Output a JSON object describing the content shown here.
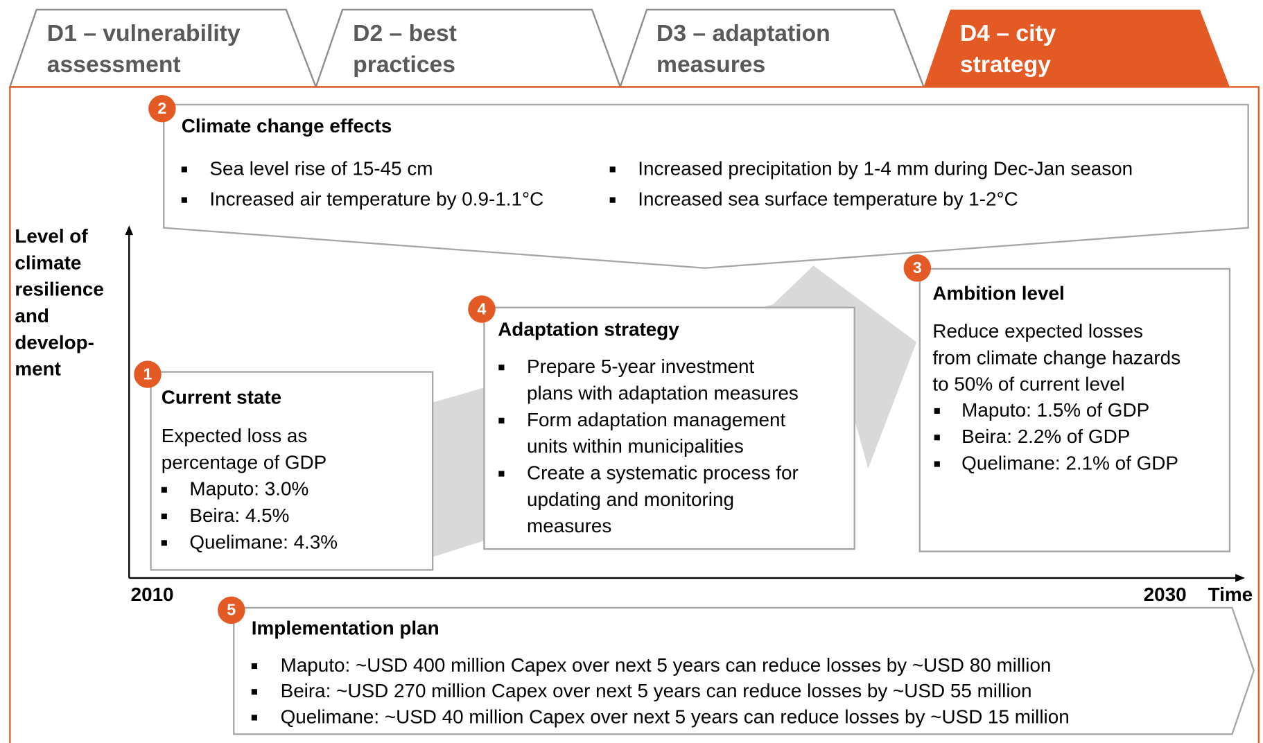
{
  "tabs": [
    {
      "lines": [
        "D1 – vulnerability",
        "assessment"
      ]
    },
    {
      "lines": [
        "D2 – best",
        "practices"
      ]
    },
    {
      "lines": [
        "D3 – adaptation",
        "measures"
      ]
    },
    {
      "lines": [
        "D4 – city",
        "strategy"
      ]
    }
  ],
  "y_axis_label": [
    "Level of",
    "climate",
    "resilience",
    "and",
    "develop-",
    "ment"
  ],
  "x_axis": {
    "start": "2010",
    "end": "2030",
    "label": "Time"
  },
  "boxes": [
    {
      "number": "2",
      "title": "Climate change effects",
      "intro": [],
      "bullets": [
        [
          "Sea level rise of 15-45 cm"
        ],
        [
          "Increased air temperature by 0.9-1.1°C"
        ],
        [
          "Increased precipitation by 1-4 mm during Dec-Jan season"
        ],
        [
          "Increased sea surface temperature by 1-2°C"
        ]
      ]
    },
    {
      "number": "1",
      "title": "Current state",
      "intro": [
        "Expected loss as",
        "percentage of GDP"
      ],
      "bullets": [
        [
          "Maputo: 3.0%"
        ],
        [
          "Beira: 4.5%"
        ],
        [
          "Quelimane: 4.3%"
        ]
      ]
    },
    {
      "number": "4",
      "title": "Adaptation strategy",
      "intro": [],
      "bullets": [
        [
          "Prepare 5-year investment",
          "plans with adaptation measures"
        ],
        [
          "Form adaptation management",
          "units within municipalities"
        ],
        [
          "Create a systematic process for",
          "updating and monitoring",
          "measures"
        ]
      ]
    },
    {
      "number": "3",
      "title": "Ambition level",
      "intro": [
        "Reduce expected losses",
        "from climate change hazards",
        "to 50% of current level"
      ],
      "bullets": [
        [
          "Maputo: 1.5% of GDP"
        ],
        [
          "Beira: 2.2% of GDP"
        ],
        [
          "Quelimane: 2.1% of GDP"
        ]
      ]
    },
    {
      "number": "5",
      "title": "Implementation plan",
      "intro": [],
      "bullets": [
        [
          "Maputo: ~USD 400 million Capex over next 5 years can reduce losses by ~USD 80 million"
        ],
        [
          "Beira: ~USD 270 million Capex over next 5 years can reduce losses by ~USD 55 million"
        ],
        [
          "Quelimane: ~USD 40 million Capex over next 5 years can reduce losses by ~USD 15 million"
        ]
      ]
    }
  ]
}
